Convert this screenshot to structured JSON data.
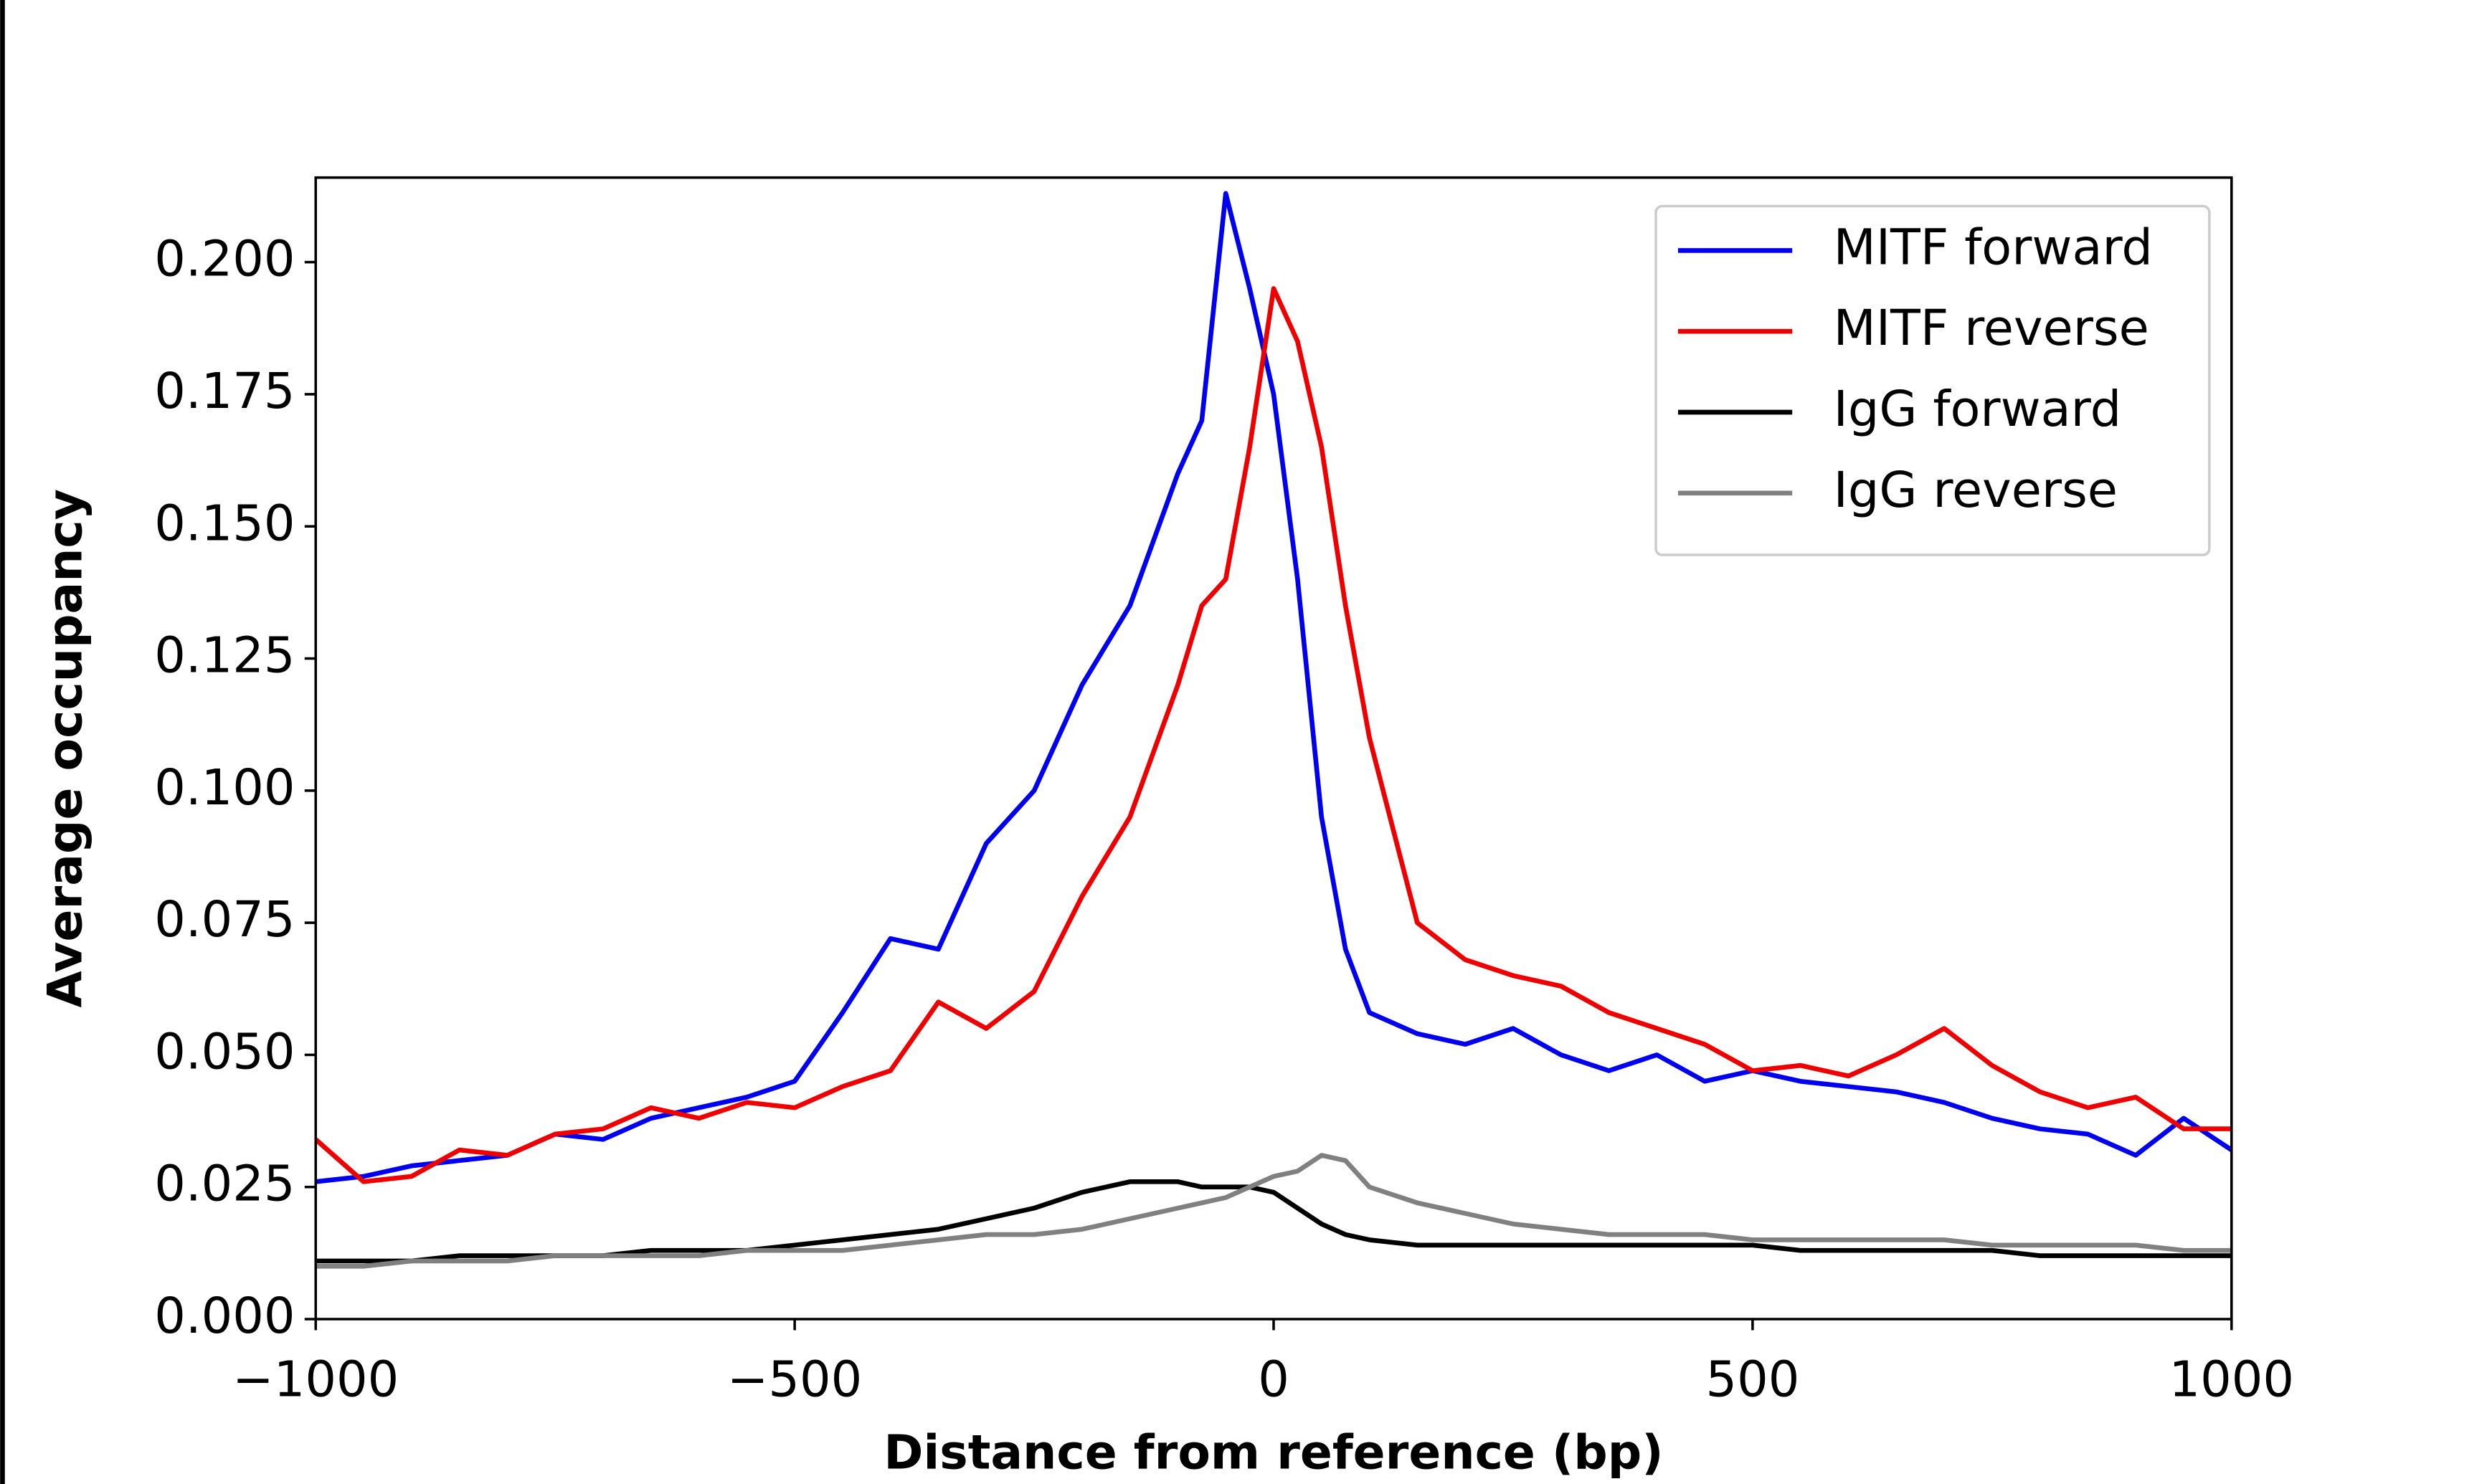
{
  "chart_data": {
    "type": "line",
    "xlabel": "Distance from reference (bp)",
    "ylabel": "Average occupancy",
    "x": [
      -1000,
      -950,
      -900,
      -850,
      -800,
      -750,
      -700,
      -650,
      -600,
      -550,
      -500,
      -450,
      -400,
      -350,
      -300,
      -250,
      -200,
      -150,
      -100,
      -75,
      -50,
      -25,
      0,
      25,
      50,
      75,
      100,
      150,
      200,
      250,
      300,
      350,
      400,
      450,
      500,
      550,
      600,
      650,
      700,
      750,
      800,
      850,
      900,
      950,
      1000
    ],
    "series": [
      {
        "name": "MITF forward",
        "color": "#0000ee",
        "values": [
          0.026,
          0.027,
          0.029,
          0.03,
          0.031,
          0.035,
          0.034,
          0.038,
          0.04,
          0.042,
          0.045,
          0.058,
          0.072,
          0.07,
          0.09,
          0.1,
          0.12,
          0.135,
          0.16,
          0.17,
          0.213,
          0.195,
          0.175,
          0.14,
          0.095,
          0.07,
          0.058,
          0.054,
          0.052,
          0.055,
          0.05,
          0.047,
          0.05,
          0.045,
          0.047,
          0.045,
          0.044,
          0.043,
          0.041,
          0.038,
          0.036,
          0.035,
          0.031,
          0.038,
          0.032
        ]
      },
      {
        "name": "MITF reverse",
        "color": "#ee0000",
        "values": [
          0.034,
          0.026,
          0.027,
          0.032,
          0.031,
          0.035,
          0.036,
          0.04,
          0.038,
          0.041,
          0.04,
          0.044,
          0.047,
          0.06,
          0.055,
          0.062,
          0.08,
          0.095,
          0.12,
          0.135,
          0.14,
          0.165,
          0.195,
          0.185,
          0.165,
          0.135,
          0.11,
          0.075,
          0.068,
          0.065,
          0.063,
          0.058,
          0.055,
          0.052,
          0.047,
          0.048,
          0.046,
          0.05,
          0.055,
          0.048,
          0.043,
          0.04,
          0.042,
          0.036,
          0.036
        ]
      },
      {
        "name": "IgG forward",
        "color": "#000000",
        "values": [
          0.011,
          0.011,
          0.011,
          0.012,
          0.012,
          0.012,
          0.012,
          0.013,
          0.013,
          0.013,
          0.014,
          0.015,
          0.016,
          0.017,
          0.019,
          0.021,
          0.024,
          0.026,
          0.026,
          0.025,
          0.025,
          0.025,
          0.024,
          0.021,
          0.018,
          0.016,
          0.015,
          0.014,
          0.014,
          0.014,
          0.014,
          0.014,
          0.014,
          0.014,
          0.014,
          0.013,
          0.013,
          0.013,
          0.013,
          0.013,
          0.012,
          0.012,
          0.012,
          0.012,
          0.012
        ]
      },
      {
        "name": "IgG reverse",
        "color": "#808080",
        "values": [
          0.01,
          0.01,
          0.011,
          0.011,
          0.011,
          0.012,
          0.012,
          0.012,
          0.012,
          0.013,
          0.013,
          0.013,
          0.014,
          0.015,
          0.016,
          0.016,
          0.017,
          0.019,
          0.021,
          0.022,
          0.023,
          0.025,
          0.027,
          0.028,
          0.031,
          0.03,
          0.025,
          0.022,
          0.02,
          0.018,
          0.017,
          0.016,
          0.016,
          0.016,
          0.015,
          0.015,
          0.015,
          0.015,
          0.015,
          0.014,
          0.014,
          0.014,
          0.014,
          0.013,
          0.013
        ]
      }
    ],
    "xlim": [
      -1000,
      1000
    ],
    "xticks": [
      {
        "value": -1000,
        "label": "−1000"
      },
      {
        "value": -500,
        "label": "−500"
      },
      0,
      500,
      1000
    ],
    "ylim": [
      0,
      0.216
    ],
    "yticks": [
      {
        "value": 0,
        "label": "0.000"
      },
      {
        "value": 0.025,
        "label": "0.025"
      },
      {
        "value": 0.05,
        "label": "0.050"
      },
      {
        "value": 0.075,
        "label": "0.075"
      },
      {
        "value": 0.1,
        "label": "0.100"
      },
      {
        "value": 0.125,
        "label": "0.125"
      },
      {
        "value": 0.15,
        "label": "0.150"
      },
      {
        "value": 0.175,
        "label": "0.175"
      },
      {
        "value": 0.2,
        "label": "0.200"
      }
    ],
    "legend": "upper right"
  }
}
